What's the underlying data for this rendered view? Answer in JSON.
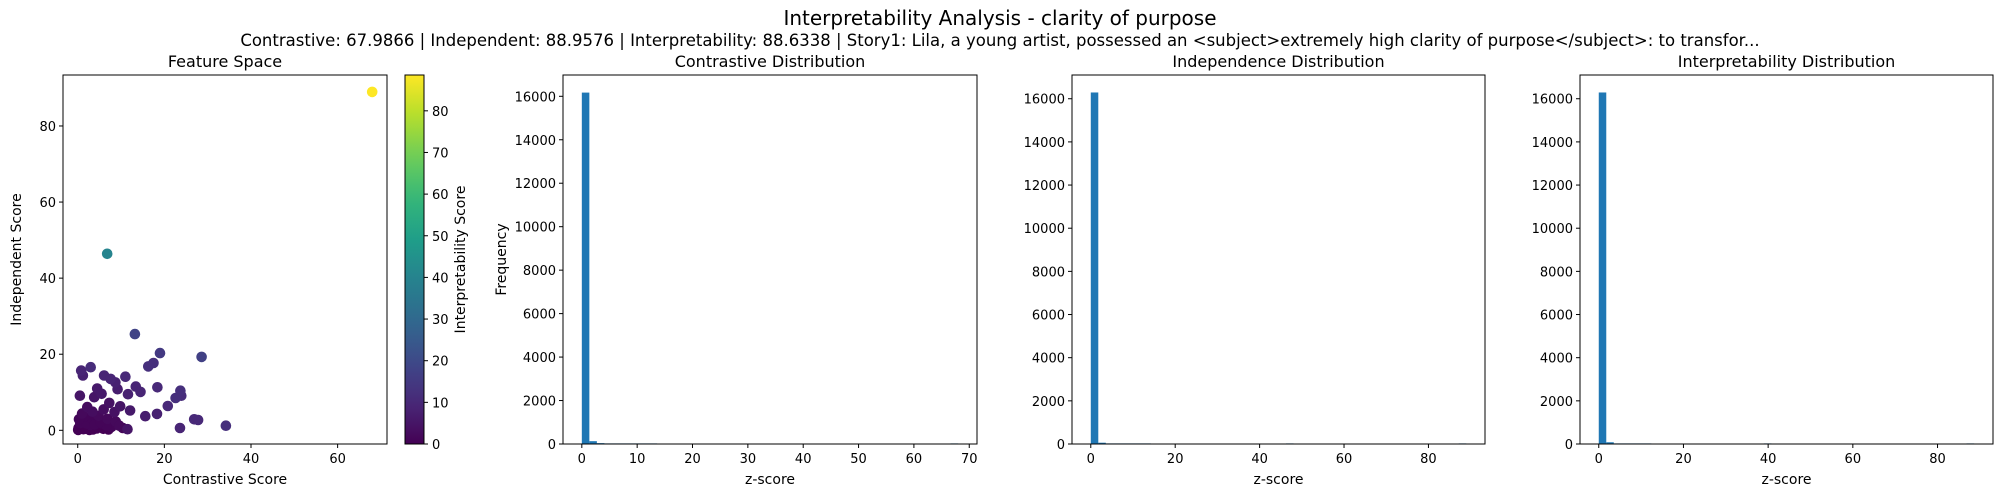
{
  "figure": {
    "title": "Interpretability Analysis - clarity of purpose",
    "subtitle": "Contrastive: 67.9866 | Independent: 88.9576 | Interpretability: 88.6338 | Story1: Lila, a young artist, possessed an <subject>extremely high clarity of purpose</subject>: to transfor..."
  },
  "chart_data": [
    {
      "type": "scatter",
      "title": "Feature Space",
      "xlabel": "Contrastive Score",
      "ylabel": "Independent Score",
      "xlim": [
        -3.4,
        71.4
      ],
      "ylim": [
        -3.6,
        93.4
      ],
      "xticks": [
        0,
        20,
        40,
        60
      ],
      "yticks": [
        0,
        20,
        40,
        60,
        80
      ],
      "colormap": "viridis",
      "colorbar": {
        "label": "Interpretability Score",
        "range": [
          0,
          88.6
        ],
        "ticks": [
          0,
          10,
          20,
          30,
          40,
          50,
          60,
          70,
          80
        ]
      },
      "points": [
        {
          "x": 67.99,
          "y": 88.96,
          "c": 88.63
        },
        {
          "x": 6.8,
          "y": 46.4,
          "c": 40
        },
        {
          "x": 13.2,
          "y": 25.3,
          "c": 18
        },
        {
          "x": 28.6,
          "y": 19.3,
          "c": 17
        },
        {
          "x": 19.0,
          "y": 20.3,
          "c": 15
        },
        {
          "x": 3.0,
          "y": 16.6,
          "c": 11
        },
        {
          "x": 0.8,
          "y": 15.7,
          "c": 9
        },
        {
          "x": 1.2,
          "y": 14.4,
          "c": 8
        },
        {
          "x": 6.1,
          "y": 14.4,
          "c": 9
        },
        {
          "x": 7.6,
          "y": 13.5,
          "c": 9
        },
        {
          "x": 8.7,
          "y": 12.6,
          "c": 8
        },
        {
          "x": 11.0,
          "y": 14.1,
          "c": 10
        },
        {
          "x": 17.5,
          "y": 17.7,
          "c": 12
        },
        {
          "x": 16.3,
          "y": 16.8,
          "c": 12
        },
        {
          "x": 18.4,
          "y": 11.3,
          "c": 10
        },
        {
          "x": 22.6,
          "y": 8.5,
          "c": 12
        },
        {
          "x": 23.7,
          "y": 10.4,
          "c": 12
        },
        {
          "x": 23.9,
          "y": 9.1,
          "c": 11
        },
        {
          "x": 13.4,
          "y": 11.5,
          "c": 9
        },
        {
          "x": 14.5,
          "y": 10.1,
          "c": 9
        },
        {
          "x": 11.6,
          "y": 9.5,
          "c": 8
        },
        {
          "x": 9.2,
          "y": 10.8,
          "c": 7
        },
        {
          "x": 4.5,
          "y": 11.0,
          "c": 6
        },
        {
          "x": 5.5,
          "y": 9.6,
          "c": 6
        },
        {
          "x": 3.8,
          "y": 8.7,
          "c": 5
        },
        {
          "x": 0.5,
          "y": 9.1,
          "c": 5
        },
        {
          "x": 20.8,
          "y": 6.4,
          "c": 10
        },
        {
          "x": 18.3,
          "y": 4.3,
          "c": 8
        },
        {
          "x": 26.9,
          "y": 2.9,
          "c": 10
        },
        {
          "x": 27.8,
          "y": 2.7,
          "c": 10
        },
        {
          "x": 34.2,
          "y": 1.2,
          "c": 12
        },
        {
          "x": 23.6,
          "y": 0.6,
          "c": 9
        },
        {
          "x": 11.5,
          "y": 0.3,
          "c": 5
        },
        {
          "x": 15.6,
          "y": 3.7,
          "c": 7
        },
        {
          "x": 12.1,
          "y": 5.2,
          "c": 6
        },
        {
          "x": 9.8,
          "y": 6.3,
          "c": 5
        },
        {
          "x": 7.3,
          "y": 7.2,
          "c": 4
        },
        {
          "x": 8.5,
          "y": 4.8,
          "c": 4
        },
        {
          "x": 6.0,
          "y": 5.5,
          "c": 3
        },
        {
          "x": 2.2,
          "y": 6.1,
          "c": 3
        },
        {
          "x": 3.4,
          "y": 4.9,
          "c": 3
        },
        {
          "x": 1.0,
          "y": 4.4,
          "c": 2
        },
        {
          "x": 4.8,
          "y": 3.8,
          "c": 2
        },
        {
          "x": 6.9,
          "y": 3.0,
          "c": 2
        },
        {
          "x": 8.8,
          "y": 2.3,
          "c": 2
        },
        {
          "x": 9.6,
          "y": 1.2,
          "c": 2
        },
        {
          "x": 7.8,
          "y": 0.9,
          "c": 1
        },
        {
          "x": 5.6,
          "y": 1.8,
          "c": 1
        },
        {
          "x": 4.1,
          "y": 2.6,
          "c": 1
        },
        {
          "x": 2.9,
          "y": 1.4,
          "c": 1
        },
        {
          "x": 1.7,
          "y": 2.8,
          "c": 1
        },
        {
          "x": 0.6,
          "y": 1.9,
          "c": 1
        },
        {
          "x": 0.2,
          "y": 0.6,
          "c": 0
        },
        {
          "x": 1.3,
          "y": 0.3,
          "c": 0
        },
        {
          "x": 2.4,
          "y": 0.8,
          "c": 0
        },
        {
          "x": 3.5,
          "y": 0.2,
          "c": 0
        },
        {
          "x": 4.7,
          "y": 0.9,
          "c": 0
        },
        {
          "x": 5.9,
          "y": 0.4,
          "c": 0
        },
        {
          "x": 6.6,
          "y": 1.3,
          "c": 1
        },
        {
          "x": 0.9,
          "y": 1.1,
          "c": 0
        },
        {
          "x": 2.0,
          "y": 1.8,
          "c": 1
        },
        {
          "x": 3.1,
          "y": 3.3,
          "c": 1
        },
        {
          "x": 1.5,
          "y": 3.6,
          "c": 1
        },
        {
          "x": 0.3,
          "y": 2.9,
          "c": 1
        },
        {
          "x": 4.4,
          "y": 0.5,
          "c": 0
        },
        {
          "x": 2.7,
          "y": 0.1,
          "c": 0
        },
        {
          "x": 7.1,
          "y": 0.2,
          "c": 0
        },
        {
          "x": 10.4,
          "y": 0.6,
          "c": 1
        },
        {
          "x": 0.1,
          "y": 0.1,
          "c": 0
        },
        {
          "x": 1.9,
          "y": 0.5,
          "c": 0
        },
        {
          "x": 3.9,
          "y": 1.5,
          "c": 1
        },
        {
          "x": 5.2,
          "y": 2.2,
          "c": 1
        }
      ]
    },
    {
      "type": "bar",
      "title": "Contrastive Distribution",
      "xlabel": "z-score",
      "ylabel": "Frequency",
      "bins": 50,
      "range": [
        0,
        67.99
      ],
      "xlim": [
        -3.4,
        71.4
      ],
      "ylim": [
        0,
        16980
      ],
      "xticks": [
        0,
        10,
        20,
        30,
        40,
        50,
        60,
        70
      ],
      "yticks": [
        0,
        2000,
        4000,
        6000,
        8000,
        10000,
        12000,
        14000,
        16000
      ],
      "counts": [
        16170,
        130,
        40,
        12,
        6,
        3,
        2,
        1,
        1,
        1,
        0,
        0,
        0,
        0,
        0,
        0,
        0,
        0,
        0,
        0,
        0,
        0,
        0,
        0,
        0,
        0,
        0,
        0,
        0,
        0,
        0,
        0,
        0,
        0,
        0,
        0,
        0,
        0,
        0,
        0,
        0,
        0,
        0,
        0,
        0,
        0,
        0,
        0,
        0,
        1
      ]
    },
    {
      "type": "bar",
      "title": "Independence Distribution",
      "xlabel": "z-score",
      "ylabel": "",
      "bins": 50,
      "range": [
        0,
        88.96
      ],
      "xlim": [
        -4.45,
        93.4
      ],
      "ylim": [
        0,
        17100
      ],
      "xticks": [
        0,
        20,
        40,
        60,
        80
      ],
      "yticks": [
        0,
        2000,
        4000,
        6000,
        8000,
        10000,
        12000,
        14000,
        16000
      ],
      "counts": [
        16290,
        60,
        15,
        5,
        2,
        1,
        1,
        1,
        0,
        0,
        0,
        0,
        0,
        0,
        0,
        0,
        0,
        0,
        0,
        0,
        0,
        0,
        0,
        0,
        0,
        0,
        1,
        0,
        0,
        0,
        0,
        0,
        0,
        0,
        0,
        0,
        0,
        0,
        0,
        0,
        0,
        0,
        0,
        0,
        0,
        0,
        0,
        0,
        0,
        1
      ]
    },
    {
      "type": "bar",
      "title": "Interpretability Distribution",
      "xlabel": "z-score",
      "ylabel": "",
      "bins": 50,
      "range": [
        0,
        88.63
      ],
      "xlim": [
        -4.43,
        93.1
      ],
      "ylim": [
        0,
        17100
      ],
      "xticks": [
        0,
        20,
        40,
        60,
        80
      ],
      "yticks": [
        0,
        2000,
        4000,
        6000,
        8000,
        10000,
        12000,
        14000,
        16000
      ],
      "counts": [
        16290,
        80,
        20,
        6,
        2,
        1,
        1,
        0,
        0,
        0,
        0,
        0,
        0,
        0,
        0,
        0,
        0,
        0,
        0,
        0,
        0,
        0,
        1,
        0,
        0,
        0,
        0,
        0,
        0,
        0,
        0,
        0,
        0,
        0,
        0,
        0,
        0,
        0,
        0,
        0,
        0,
        0,
        0,
        0,
        0,
        0,
        0,
        0,
        0,
        1
      ]
    }
  ],
  "colors": {
    "bar": "#1f77b4"
  }
}
